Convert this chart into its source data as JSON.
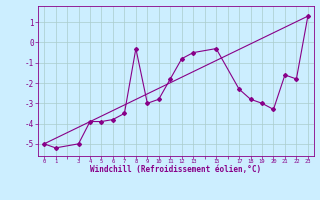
{
  "xlabel": "Windchill (Refroidissement éolien,°C)",
  "background_color": "#cceeff",
  "grid_color": "#aacccc",
  "line_color": "#880088",
  "hours": [
    0,
    1,
    3,
    4,
    5,
    6,
    7,
    8,
    9,
    10,
    11,
    12,
    13,
    15,
    17,
    18,
    19,
    20,
    21,
    22,
    23
  ],
  "windchill": [
    -5.0,
    -5.2,
    -5.0,
    -3.9,
    -3.9,
    -3.8,
    -3.5,
    -0.3,
    -3.0,
    -2.8,
    -1.8,
    -0.8,
    -0.5,
    -0.3,
    -2.3,
    -2.8,
    -3.0,
    -3.3,
    -1.6,
    -1.8,
    1.3
  ],
  "trend_x": [
    0,
    23
  ],
  "trend_y": [
    -5.0,
    1.3
  ],
  "ylim": [
    -5.6,
    1.8
  ],
  "xlim": [
    -0.5,
    23.5
  ],
  "yticks": [
    1,
    0,
    -1,
    -2,
    -3,
    -4,
    -5
  ],
  "xtick_labels": [
    "0",
    "1",
    "",
    "3",
    "4",
    "5",
    "6",
    "7",
    "8",
    "9",
    "10",
    "11",
    "12",
    "13",
    "",
    "15",
    "",
    "17",
    "18",
    "19",
    "20",
    "21",
    "22",
    "23"
  ]
}
